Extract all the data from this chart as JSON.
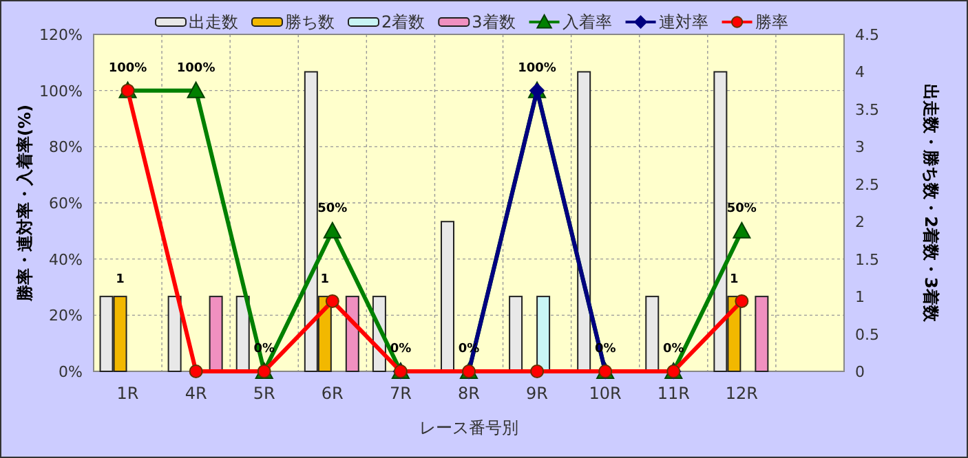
{
  "chart_data": {
    "type": "bar",
    "xlabel": "レース番号別",
    "ylabel": "勝率・連対率・入着率(%)",
    "y2label": "出走数・勝ち数・2着数・3着数",
    "categories": [
      "1R",
      "4R",
      "5R",
      "6R",
      "7R",
      "8R",
      "9R",
      "10R",
      "11R",
      "12R",
      null
    ],
    "ylim": [
      0,
      120
    ],
    "yticks": [
      {
        "value": 0,
        "label": "0%"
      },
      {
        "value": 20,
        "label": "20%"
      },
      {
        "value": 40,
        "label": "40%"
      },
      {
        "value": 60,
        "label": "60%"
      },
      {
        "value": 80,
        "label": "80%"
      },
      {
        "value": 100,
        "label": "100%"
      },
      {
        "value": 120,
        "label": "120%"
      }
    ],
    "y2lim": [
      0,
      4.5
    ],
    "y2ticks": [
      0,
      0.5,
      1,
      1.5,
      2,
      2.5,
      3,
      3.5,
      4,
      4.5
    ],
    "grid": true,
    "legend": "top",
    "series": [
      {
        "name": "出走数",
        "axis": "y2",
        "color": "#e8e8e8",
        "values": [
          1,
          1,
          1,
          4,
          1,
          2,
          1,
          4,
          1,
          4,
          null
        ]
      },
      {
        "name": "勝ち数",
        "axis": "y2",
        "color": "#f2b800",
        "values": [
          1,
          0,
          0,
          1,
          0,
          0,
          0,
          0,
          0,
          1,
          null
        ],
        "value_labels": [
          "1",
          null,
          null,
          "1",
          null,
          null,
          null,
          null,
          null,
          "1",
          null
        ]
      },
      {
        "name": "2着数",
        "axis": "y2",
        "color": "#c8f4f4",
        "values": [
          0,
          0,
          0,
          0,
          0,
          0,
          1,
          0,
          0,
          0,
          null
        ]
      },
      {
        "name": "3着数",
        "axis": "y2",
        "color": "#f090c0",
        "values": [
          0,
          1,
          0,
          1,
          0,
          0,
          0,
          0,
          0,
          1,
          null
        ]
      },
      {
        "name": "入着率",
        "type": "line",
        "color": "#008000",
        "marker": "triangle",
        "values": [
          100,
          100,
          0,
          50,
          0,
          0,
          100,
          0,
          0,
          50,
          null
        ],
        "value_labels": [
          "100%",
          "100%",
          "0%",
          "50%",
          "0%",
          "0%",
          "100%",
          "0%",
          "0%",
          "50%",
          null
        ]
      },
      {
        "name": "連対率",
        "type": "line",
        "color": "#000080",
        "marker": "diamond",
        "values": [
          null,
          null,
          null,
          null,
          0,
          0,
          100,
          0,
          0,
          null,
          null
        ]
      },
      {
        "name": "勝率",
        "type": "line",
        "color": "#ff0000",
        "marker": "circle",
        "values": [
          100,
          0,
          0,
          25,
          0,
          0,
          0,
          0,
          0,
          25,
          null
        ]
      }
    ]
  }
}
